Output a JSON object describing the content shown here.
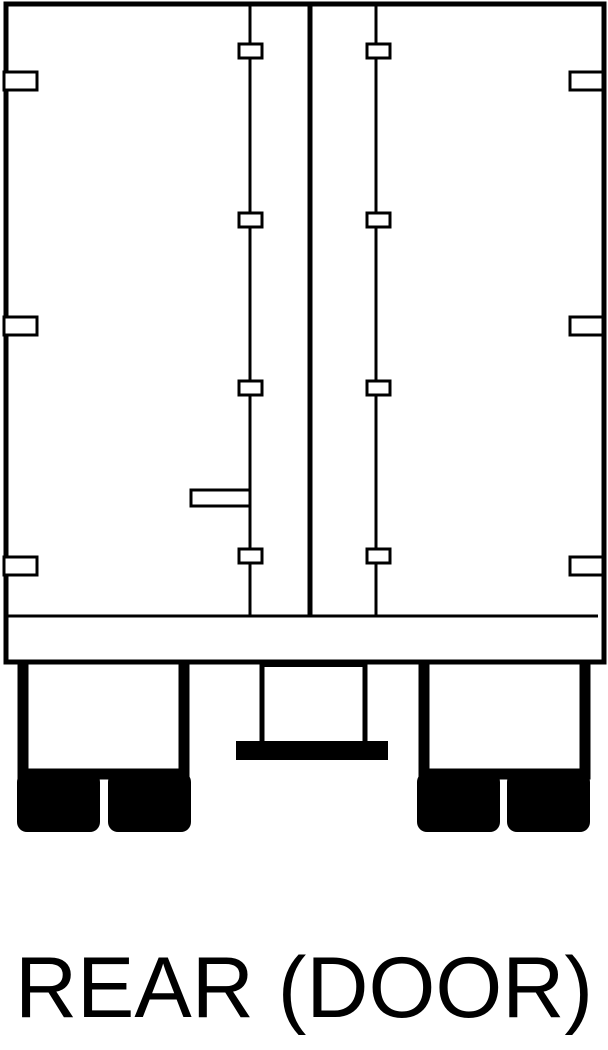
{
  "caption": {
    "text": "REAR (DOOR)"
  },
  "colors": {
    "stroke": "#000000",
    "fill": "#000000",
    "background": "#ffffff"
  },
  "diagram": {
    "subject": "trailer-rear-doors"
  }
}
